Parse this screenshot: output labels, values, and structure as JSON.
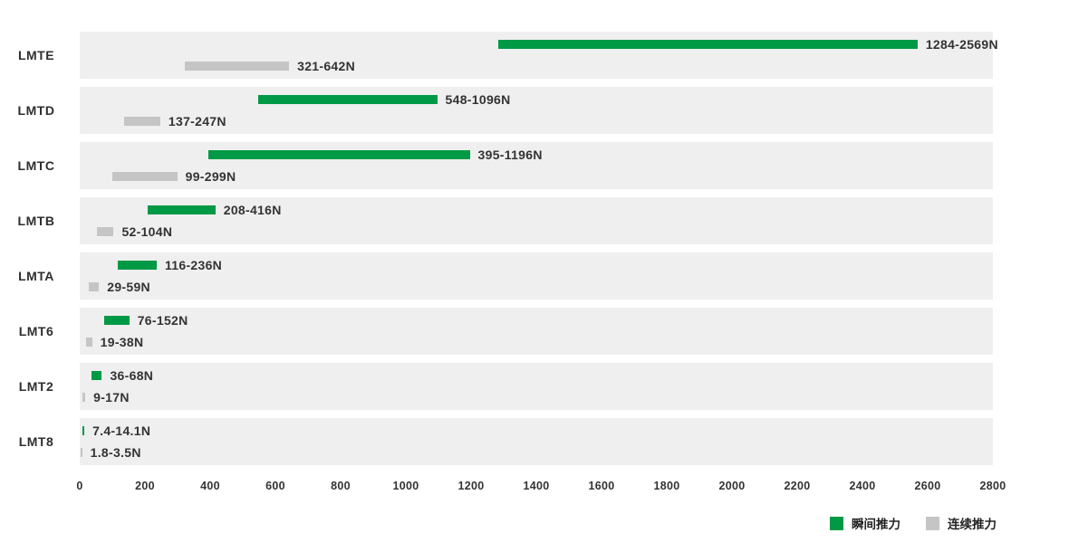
{
  "chart_data": {
    "type": "bar",
    "subtype": "horizontal-range-bars",
    "title": "",
    "xlabel": "",
    "ylabel": "",
    "xlim": [
      0,
      2800
    ],
    "x_ticks": [
      0,
      200,
      400,
      600,
      800,
      1000,
      1200,
      1400,
      1600,
      1800,
      2000,
      2200,
      2400,
      2600,
      2800
    ],
    "grid": false,
    "categories": [
      "LMTE",
      "LMTD",
      "LMTC",
      "LMTB",
      "LMTA",
      "LMT6",
      "LMT2",
      "LMT8"
    ],
    "series": [
      {
        "name": "瞬间推力",
        "color": "#009945",
        "ranges": [
          [
            1284,
            2569
          ],
          [
            548,
            1096
          ],
          [
            395,
            1196
          ],
          [
            208,
            416
          ],
          [
            116,
            236
          ],
          [
            76,
            152
          ],
          [
            36,
            68
          ],
          [
            7.4,
            14.1
          ]
        ],
        "labels": [
          "1284-2569N",
          "548-1096N",
          "395-1196N",
          "208-416N",
          "116-236N",
          "76-152N",
          "36-68N",
          "7.4-14.1N"
        ]
      },
      {
        "name": "连续推力",
        "color": "#c5c5c5",
        "ranges": [
          [
            321,
            642
          ],
          [
            137,
            247
          ],
          [
            99,
            299
          ],
          [
            52,
            104
          ],
          [
            29,
            59
          ],
          [
            19,
            38
          ],
          [
            9,
            17
          ],
          [
            1.8,
            3.5
          ]
        ],
        "labels": [
          "321-642N",
          "137-247N",
          "99-299N",
          "52-104N",
          "29-59N",
          "19-38N",
          "9-17N",
          "1.8-3.5N"
        ]
      }
    ],
    "legend": {
      "position": "bottom-right",
      "items": [
        {
          "label": "瞬间推力",
          "color": "#009945"
        },
        {
          "label": "连续推力",
          "color": "#c5c5c5"
        }
      ]
    },
    "colors": {
      "row_background": "#efefef",
      "text": "#333333",
      "instant_thrust": "#009945",
      "continuous_thrust": "#c5c5c5"
    }
  }
}
